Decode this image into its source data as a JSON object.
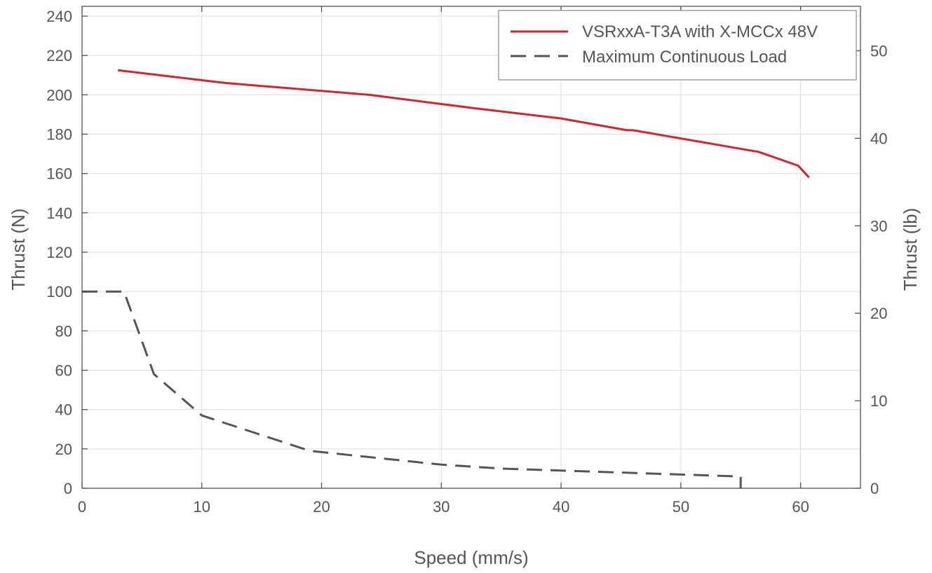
{
  "chart_data": {
    "type": "line",
    "xlabel": "Speed (mm/s)",
    "ylabel": "Thrust (N)",
    "ylabel_right": "Thrust (lb)",
    "xlim": [
      0,
      65
    ],
    "ylim": [
      0,
      245
    ],
    "ylim_right": [
      0,
      55.08
    ],
    "xticks": [
      0,
      10,
      20,
      30,
      40,
      50,
      60
    ],
    "yticks": [
      0,
      20,
      40,
      60,
      80,
      100,
      120,
      140,
      160,
      180,
      200,
      220,
      240
    ],
    "yticks_right": [
      0,
      10,
      20,
      30,
      40,
      50
    ],
    "grid": true,
    "legend_position": "top-right",
    "series": [
      {
        "name": "VSRxxA-T3A with X-MCCx 48V",
        "style": "solid",
        "color": "#d0262c",
        "x": [
          3,
          12,
          24,
          33,
          40,
          45.5,
          46,
          56.5,
          59.8,
          60.7
        ],
        "y": [
          212.5,
          206,
          200,
          193,
          188,
          182,
          182,
          171,
          164,
          158
        ]
      },
      {
        "name": "Maximum Continuous Load",
        "style": "dashed",
        "color": "#555555",
        "x": [
          0,
          3.5,
          6,
          10,
          19,
          30,
          35,
          55,
          55
        ],
        "y": [
          100,
          100,
          58,
          37,
          19,
          12,
          10,
          6,
          0
        ]
      }
    ]
  }
}
